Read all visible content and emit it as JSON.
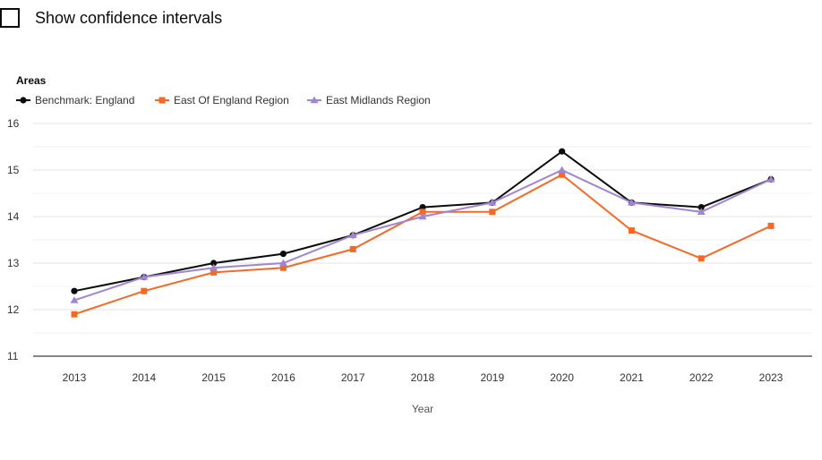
{
  "controls": {
    "confidence_label": "Show confidence intervals",
    "confidence_checked": false
  },
  "chart_data": {
    "type": "line",
    "legend_title": "Areas",
    "legend_position": "top-left",
    "xlabel": "Year",
    "ylabel": "",
    "categories": [
      "2013",
      "2014",
      "2015",
      "2016",
      "2017",
      "2018",
      "2019",
      "2020",
      "2021",
      "2022",
      "2023"
    ],
    "ylim": [
      11,
      16
    ],
    "yticks": [
      11,
      12,
      13,
      14,
      15,
      16
    ],
    "grid": true,
    "series": [
      {
        "name": "Benchmark: England",
        "color": "#0b0c0c",
        "marker": "circle",
        "values": [
          12.4,
          12.7,
          13.0,
          13.2,
          13.6,
          14.2,
          14.3,
          15.4,
          14.3,
          14.2,
          14.8
        ]
      },
      {
        "name": "East Of England Region",
        "color": "#f46a25",
        "marker": "square",
        "values": [
          11.9,
          12.4,
          12.8,
          12.9,
          13.3,
          14.1,
          14.1,
          14.9,
          13.7,
          13.1,
          13.8
        ]
      },
      {
        "name": "East Midlands Region",
        "color": "#a285d1",
        "marker": "triangle",
        "values": [
          12.2,
          12.7,
          12.9,
          13.0,
          13.6,
          14.0,
          14.3,
          15.0,
          14.3,
          14.1,
          14.8
        ]
      }
    ]
  }
}
